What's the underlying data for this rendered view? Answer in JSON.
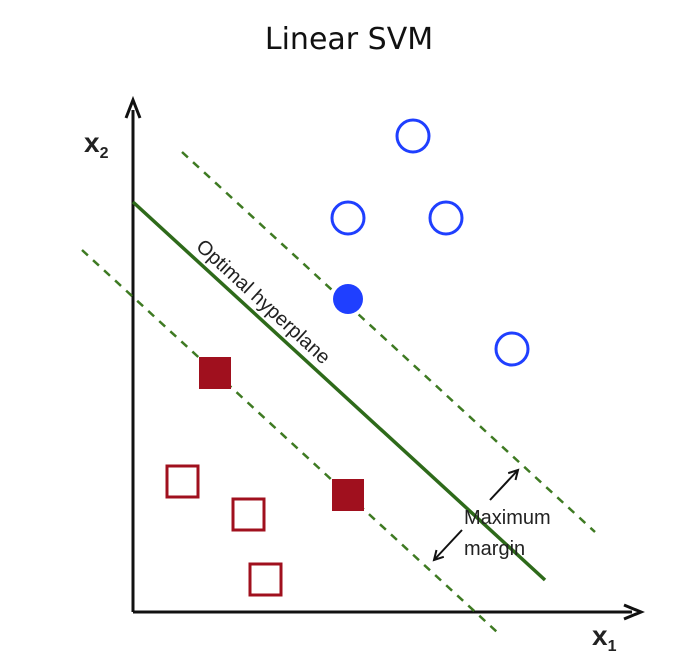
{
  "title": "Linear SVM",
  "axes": {
    "x_label": "x",
    "x_sub": "1",
    "y_label": "x",
    "y_sub": "2"
  },
  "hyperplane_label": "Optimal hyperplane",
  "margin_label": [
    "Maximum",
    "margin"
  ],
  "colors": {
    "positive": "#1f3fff",
    "negative": "#a0101e",
    "hyperplane": "#2e6a1a",
    "margin": "#3e7a22",
    "axis": "#111111"
  },
  "classes": {
    "positive": {
      "shape": "circle",
      "support_vectors": 1,
      "other_points": 4
    },
    "negative": {
      "shape": "square",
      "support_vectors": 2,
      "other_points": 3
    }
  }
}
